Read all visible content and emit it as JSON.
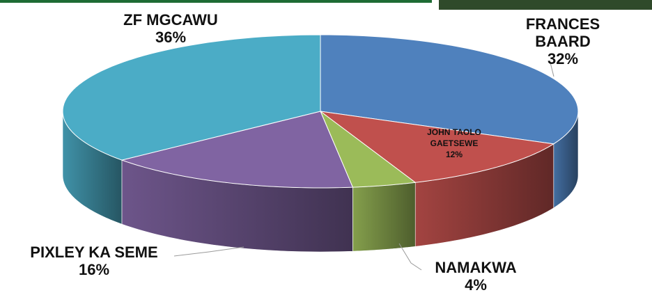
{
  "chart_data": {
    "type": "pie",
    "categories": [
      "FRANCES BAARD",
      "JOHN TAOLO GAETSEWE",
      "NAMAKWA",
      "PIXLEY KA SEME",
      "ZF MGCAWU"
    ],
    "values": [
      32,
      12,
      4,
      16,
      36
    ],
    "value_labels": [
      "32%",
      "12%",
      "4%",
      "16%",
      "36%"
    ],
    "colors": [
      "#4f81bd",
      "#c0504d",
      "#9bbb59",
      "#8064a2",
      "#4bacc6"
    ]
  }
}
